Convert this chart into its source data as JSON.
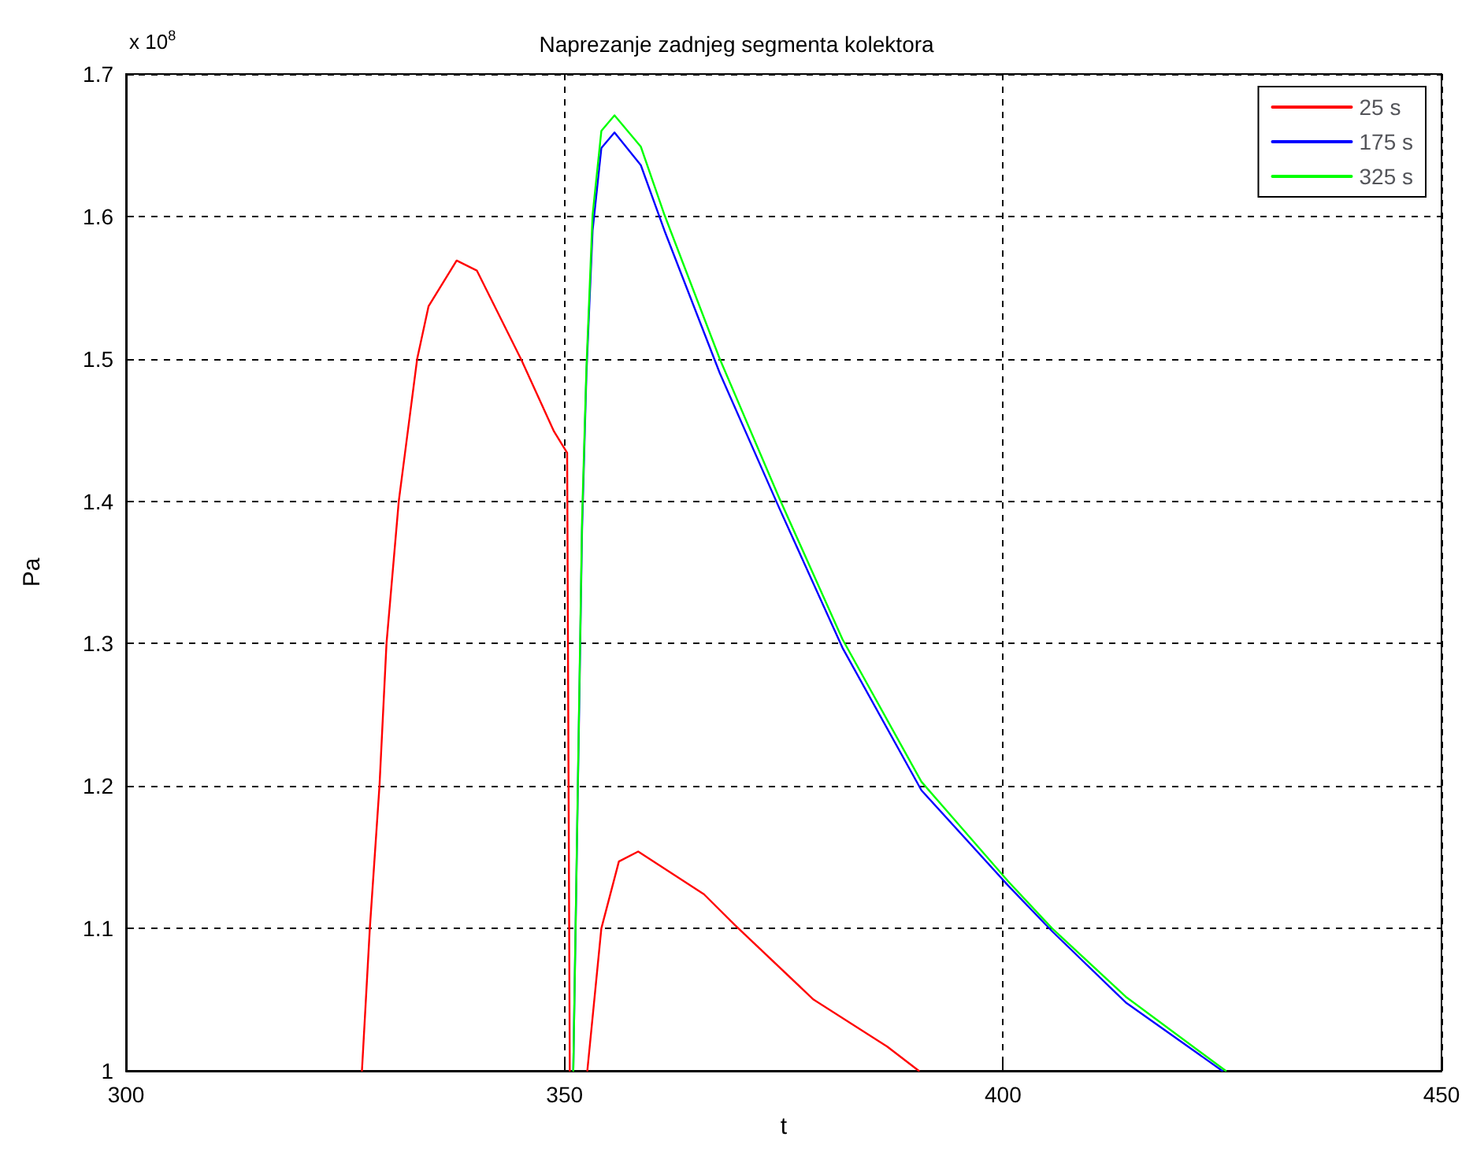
{
  "chart_data": {
    "type": "line",
    "title": "Naprezanje zadnjeg segmenta kolektora",
    "xlabel": "t",
    "ylabel": "Pa",
    "annotations": [
      "x 10$^{8}$"
    ],
    "xlim": [
      300,
      450
    ],
    "xticks": [
      300,
      350,
      400,
      450
    ],
    "ylim": [
      1,
      1.7
    ],
    "yticks": [
      1,
      1.1,
      1.2,
      1.3,
      1.4,
      1.5,
      1.6,
      1.7
    ],
    "grid": true,
    "legend": "top right",
    "marker": "none",
    "line_style": "solid",
    "series": [
      {
        "name": "25 s",
        "color": "#ff0000",
        "x": [
          326.9,
          327.8,
          328.9,
          329.7,
          331.1,
          333.2,
          334.5,
          337.7,
          340,
          345.1,
          348.8,
          350.3,
          350.6,
          351.5,
          352.6,
          354.2,
          356.2,
          358.4,
          365.9,
          369.5,
          378.4,
          386.8,
          390.4
        ],
        "values": [
          1.0,
          1.1,
          1.2,
          1.3,
          1.4,
          1.5,
          1.537,
          1.569,
          1.562,
          1.499,
          1.449,
          1.434,
          1.0,
          null,
          1.0,
          1.1,
          1.147,
          1.154,
          1.124,
          1.102,
          1.05,
          1.017,
          1.0
        ]
      },
      {
        "name": "175 s",
        "color": "#0000ff",
        "x": [
          351.0,
          352.0,
          352.5,
          353.2,
          354.2,
          355.7,
          358.7,
          361.4,
          367.7,
          374.5,
          381.7,
          390.7,
          400.6,
          405.6,
          414,
          425
        ],
        "values": [
          1.0,
          1.38,
          1.49,
          1.59,
          1.648,
          1.659,
          1.636,
          1.59,
          1.49,
          1.395,
          1.297,
          1.197,
          1.13,
          1.098,
          1.048,
          1.0
        ]
      },
      {
        "name": "325 s",
        "color": "#00ff00",
        "x": [
          351.0,
          352.0,
          352.5,
          353.2,
          354.2,
          355.7,
          358.7,
          361.4,
          367.7,
          374.5,
          381.7,
          390.7,
          400.6,
          405.6,
          414,
          425.4
        ],
        "values": [
          1.0,
          1.387,
          1.494,
          1.601,
          1.66,
          1.671,
          1.649,
          1.601,
          1.5,
          1.402,
          1.303,
          1.203,
          1.133,
          1.1,
          1.052,
          1.0
        ]
      }
    ]
  }
}
